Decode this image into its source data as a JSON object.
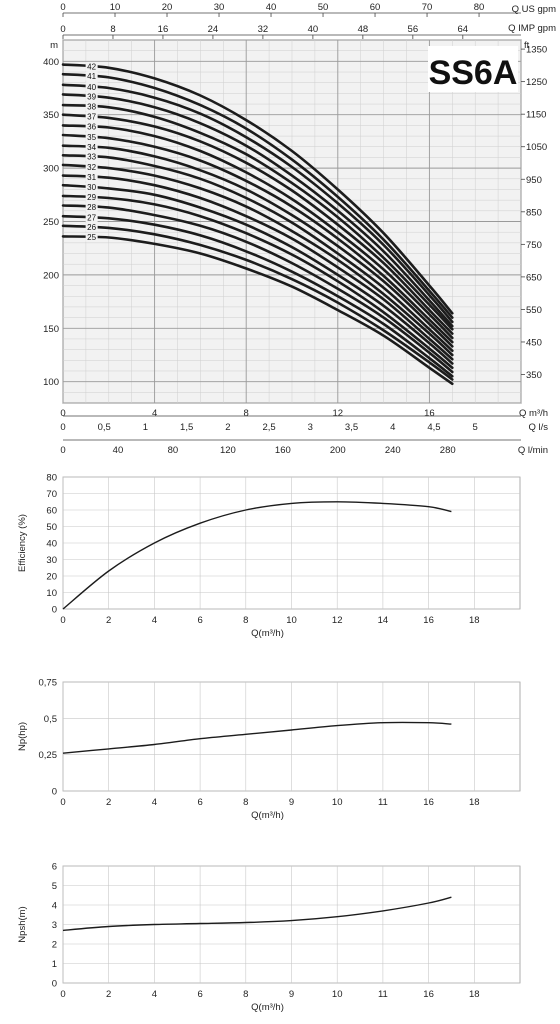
{
  "chart_data": [
    {
      "type": "line",
      "title": "SS6A",
      "top_axes": [
        {
          "label": "Q US gpm",
          "ticks": [
            "0",
            "10",
            "20",
            "30",
            "40",
            "50",
            "60",
            "70",
            "80"
          ]
        },
        {
          "label": "Q IMP gpm",
          "ticks": [
            "0",
            "8",
            "16",
            "24",
            "32",
            "40",
            "48",
            "56",
            "64"
          ]
        }
      ],
      "bottom_axes": [
        {
          "label": "Q m³/h",
          "ticks": [
            "0",
            "4",
            "8",
            "12",
            "16"
          ]
        },
        {
          "label": "Q l/s",
          "ticks": [
            "0",
            "0,5",
            "1",
            "1,5",
            "2",
            "2,5",
            "3",
            "3,5",
            "4",
            "4,5",
            "5"
          ]
        },
        {
          "label": "Q l/min",
          "ticks": [
            "0",
            "40",
            "80",
            "120",
            "160",
            "200",
            "240",
            "280"
          ]
        }
      ],
      "ylabel": "m",
      "ylabel_right": "ft",
      "xlim": [
        0,
        20
      ],
      "ylim": [
        80,
        420
      ],
      "yticks": [
        "100",
        "150",
        "200",
        "250",
        "300",
        "350",
        "400"
      ],
      "yticks_right": [
        "350",
        "450",
        "550",
        "650",
        "750",
        "850",
        "950",
        "1050",
        "1150",
        "1250",
        "1350"
      ],
      "grid": true,
      "x": [
        0,
        2,
        4,
        6,
        8,
        10,
        12,
        14,
        16,
        17
      ],
      "series": [
        {
          "name": "42",
          "values": [
            397,
            394,
            384,
            368,
            345,
            316,
            280,
            239,
            190,
            164
          ]
        },
        {
          "name": "41",
          "values": [
            388,
            385,
            375,
            359,
            337,
            308,
            273,
            233,
            185,
            160
          ]
        },
        {
          "name": "40",
          "values": [
            378,
            375,
            366,
            351,
            329,
            301,
            267,
            228,
            181,
            156
          ]
        },
        {
          "name": "39",
          "values": [
            369,
            366,
            357,
            342,
            321,
            293,
            260,
            222,
            176,
            152
          ]
        },
        {
          "name": "38",
          "values": [
            359,
            357,
            348,
            333,
            313,
            286,
            254,
            216,
            172,
            149
          ]
        },
        {
          "name": "37",
          "values": [
            350,
            347,
            339,
            325,
            305,
            279,
            247,
            211,
            167,
            145
          ]
        },
        {
          "name": "36",
          "values": [
            340,
            338,
            330,
            316,
            296,
            271,
            240,
            205,
            163,
            141
          ]
        },
        {
          "name": "35",
          "values": [
            331,
            328,
            320,
            307,
            288,
            264,
            234,
            199,
            158,
            137
          ]
        },
        {
          "name": "34",
          "values": [
            321,
            319,
            311,
            298,
            280,
            256,
            227,
            194,
            154,
            133
          ]
        },
        {
          "name": "33",
          "values": [
            312,
            310,
            302,
            290,
            272,
            249,
            220,
            188,
            149,
            129
          ]
        },
        {
          "name": "32",
          "values": [
            303,
            300,
            293,
            281,
            264,
            241,
            214,
            182,
            145,
            125
          ]
        },
        {
          "name": "31",
          "values": [
            293,
            291,
            284,
            272,
            255,
            234,
            207,
            177,
            140,
            121
          ]
        },
        {
          "name": "30",
          "values": [
            284,
            281,
            275,
            263,
            247,
            226,
            200,
            171,
            136,
            117
          ]
        },
        {
          "name": "29",
          "values": [
            274,
            272,
            266,
            255,
            239,
            219,
            194,
            165,
            131,
            113
          ]
        },
        {
          "name": "28",
          "values": [
            265,
            263,
            256,
            246,
            231,
            211,
            187,
            160,
            127,
            109
          ]
        },
        {
          "name": "27",
          "values": [
            255,
            253,
            247,
            237,
            222,
            203,
            180,
            154,
            122,
            105
          ]
        },
        {
          "name": "26",
          "values": [
            246,
            244,
            238,
            228,
            214,
            196,
            174,
            148,
            118,
            102
          ]
        },
        {
          "name": "25",
          "values": [
            236,
            235,
            229,
            220,
            206,
            189,
            167,
            143,
            113,
            98
          ]
        }
      ]
    },
    {
      "type": "line",
      "xlabel": "Q(m³/h)",
      "ylabel": "Efficiency (%)",
      "xlim": [
        0,
        20
      ],
      "ylim": [
        0,
        80
      ],
      "xticks": [
        "0",
        "2",
        "4",
        "6",
        "8",
        "10",
        "12",
        "14",
        "16",
        "18"
      ],
      "yticks": [
        "0",
        "10",
        "20",
        "30",
        "40",
        "50",
        "60",
        "70",
        "80"
      ],
      "grid": true,
      "x": [
        0,
        2,
        4,
        6,
        8,
        10,
        12,
        14,
        16,
        17
      ],
      "values": [
        0,
        23,
        40,
        52,
        60,
        64,
        65,
        64,
        62,
        59
      ]
    },
    {
      "type": "line",
      "xlabel": "Q(m³/h)",
      "ylabel": "Np(hp)",
      "xlim": [
        0,
        20
      ],
      "ylim": [
        0,
        0.75
      ],
      "xticks": [
        "0",
        "2",
        "4",
        "6",
        "8",
        "9",
        "10",
        "11",
        "16",
        "18"
      ],
      "yticks": [
        "0",
        "0,25",
        "0,5",
        "0,75"
      ],
      "grid": true,
      "x": [
        0,
        2,
        4,
        6,
        8,
        10,
        12,
        14,
        16,
        17
      ],
      "values": [
        0.26,
        0.29,
        0.32,
        0.36,
        0.39,
        0.42,
        0.45,
        0.47,
        0.47,
        0.46
      ]
    },
    {
      "type": "line",
      "xlabel": "Q(m³/h)",
      "ylabel": "Npsh(m)",
      "xlim": [
        0,
        20
      ],
      "ylim": [
        0,
        6
      ],
      "xticks": [
        "0",
        "2",
        "4",
        "6",
        "8",
        "9",
        "10",
        "11",
        "16",
        "18"
      ],
      "yticks": [
        "0",
        "1",
        "2",
        "3",
        "4",
        "5",
        "6"
      ],
      "grid": true,
      "x": [
        0,
        2,
        4,
        6,
        8,
        10,
        12,
        14,
        16,
        17
      ],
      "values": [
        2.7,
        2.9,
        3.0,
        3.05,
        3.1,
        3.2,
        3.4,
        3.7,
        4.1,
        4.4
      ]
    }
  ]
}
